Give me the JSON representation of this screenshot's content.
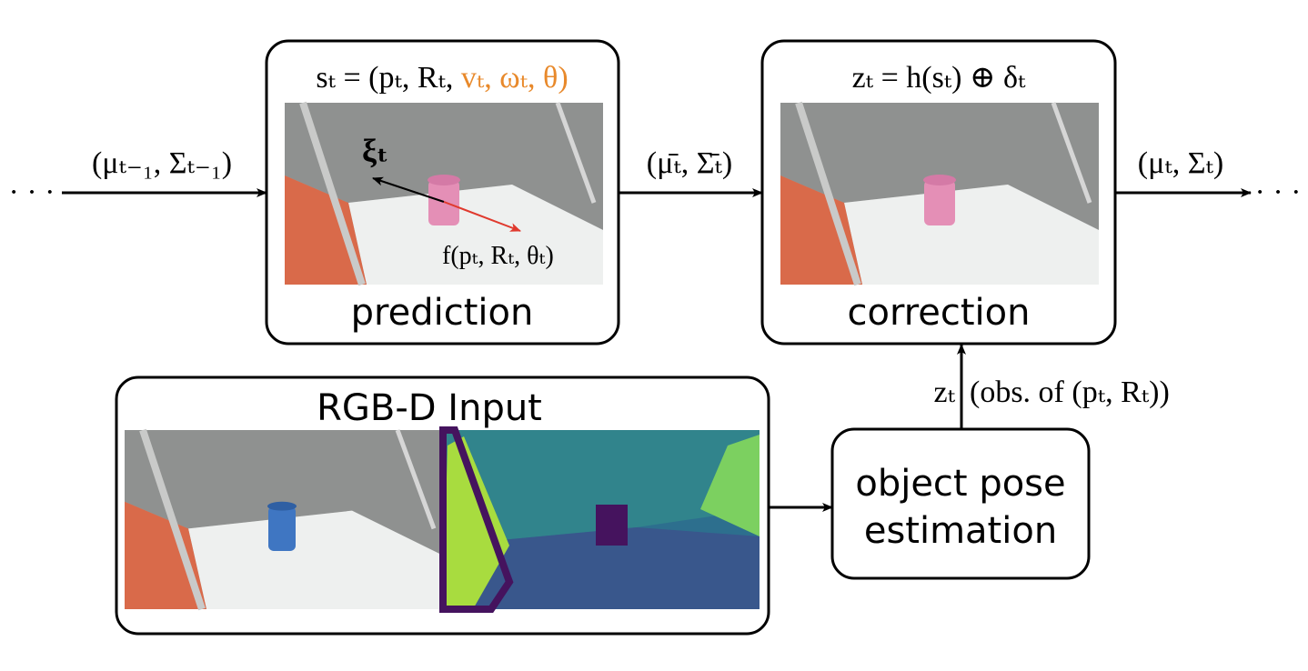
{
  "nodes": [
    {
      "label": "prediction",
      "formula": "sₜ = (pₜ, Rₜ, ",
      "formula_highlight": "vₜ, ωₜ, θ)",
      "vector_label": "ξₜ",
      "motion_label": "f(pₜ, Rₜ, θₜ)"
    },
    {
      "label": "correction",
      "formula": "zₜ = h(sₜ) ⊕ δₜ"
    },
    {
      "label": "RGB-D Input"
    },
    {
      "label_line1": "object pose",
      "label_line2": "estimation"
    }
  ],
  "edges": [
    {
      "label": "(μₜ₋₁, Σₜ₋₁)"
    },
    {
      "label": "(μ̄ₜ, Σ̄ₜ)"
    },
    {
      "label": "(μₜ, Σₜ)"
    },
    {
      "label": "zₜ",
      "note": "(obs. of (pₜ, Rₜ))"
    }
  ],
  "ellipsis": "· · ·"
}
